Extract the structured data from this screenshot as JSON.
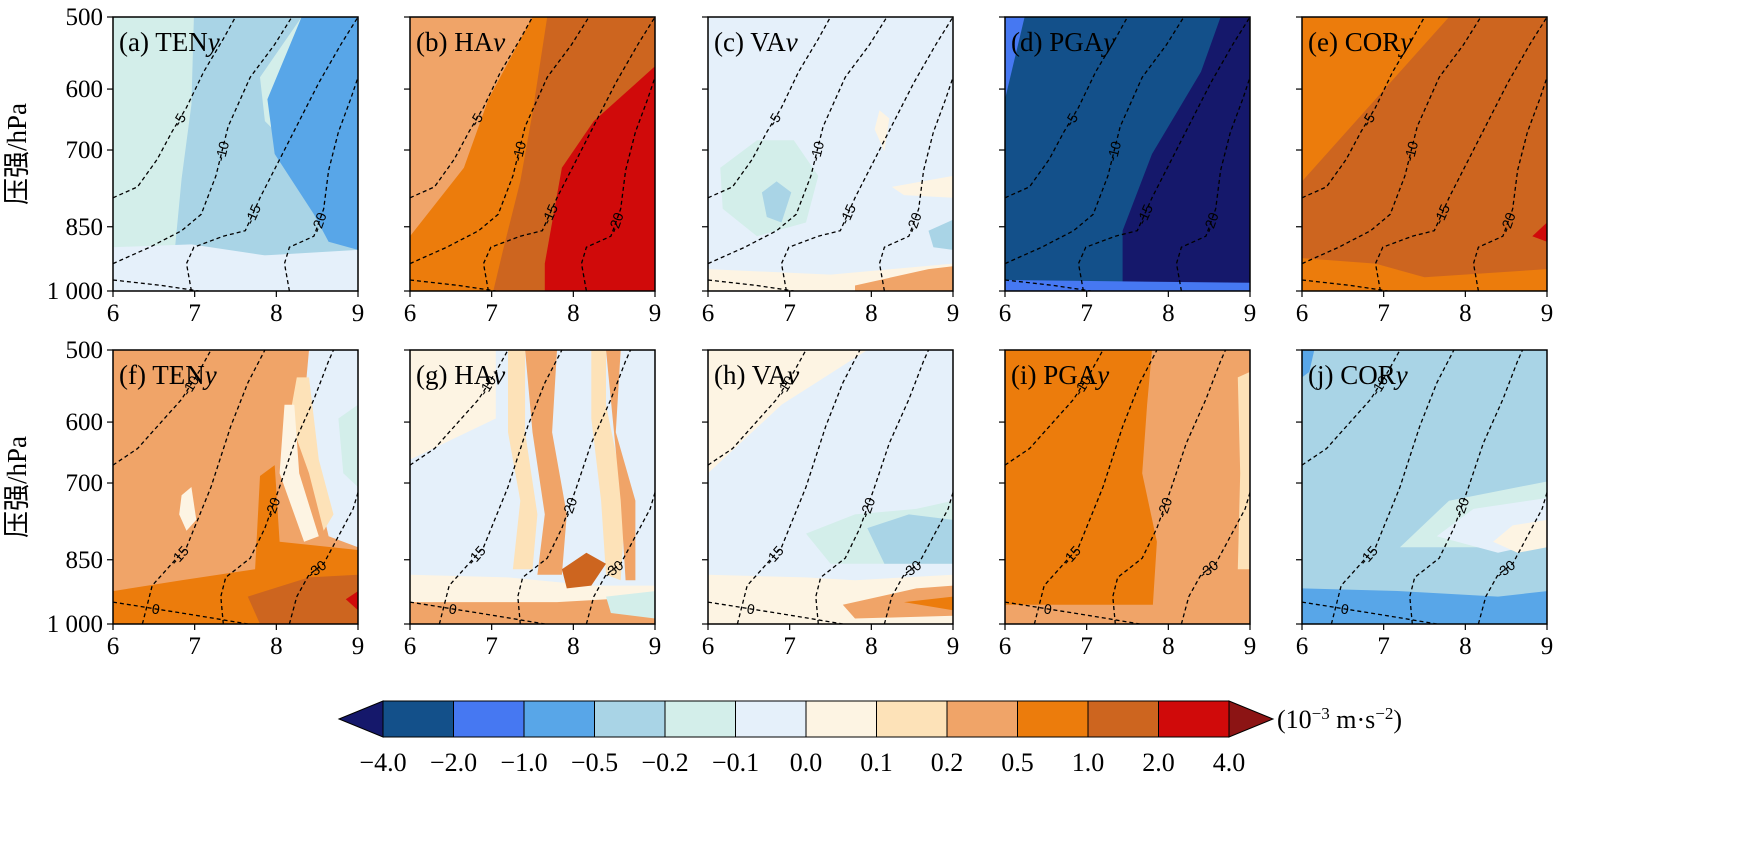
{
  "colors": {
    "levels": [
      "-4.0",
      "-2.0",
      "-1.0",
      "-0.5",
      "-0.2",
      "-0.1",
      "0.0",
      "0.1",
      "0.2",
      "0.5",
      "1.0",
      "2.0",
      "4.0"
    ],
    "under": "#15186b",
    "over": "#8c1414",
    "bins": [
      "#13508a",
      "#4678f2",
      "#58a6e8",
      "#a9d4e6",
      "#d3eeea",
      "#e5f0fa",
      "#fdf4e3",
      "#fde2b8",
      "#f0a468",
      "#ec7c0c",
      "#cd651f",
      "#d00a0a"
    ]
  },
  "colorbar": {
    "unit_parts": [
      "(10",
      "−3",
      " m·s",
      "−2",
      ")"
    ]
  },
  "chart_data": {
    "type": "heatmap",
    "ylabel": "压强/hPa",
    "x_ticks": [
      "6",
      "7",
      "8",
      "9"
    ],
    "y_ticks": [
      "500",
      "600",
      "700",
      "850",
      "1 000"
    ],
    "xlim": [
      6,
      9
    ],
    "ylim": [
      1000,
      500
    ],
    "y_scale": "log",
    "contour_style": "black dashed",
    "contour_levels": {
      "row1": [
        0,
        -5,
        -10,
        -15,
        -20
      ],
      "row2": [
        0,
        -10,
        -15,
        -20,
        -30
      ]
    },
    "panels": [
      {
        "id": "a",
        "title": "(a) TENy",
        "row": 1,
        "col": 1
      },
      {
        "id": "b",
        "title": "(b) HAv",
        "row": 1,
        "col": 2
      },
      {
        "id": "c",
        "title": "(c) VAv",
        "row": 1,
        "col": 3
      },
      {
        "id": "d",
        "title": "(d) PGAy",
        "row": 1,
        "col": 4
      },
      {
        "id": "e",
        "title": "(e) CORy",
        "row": 1,
        "col": 5
      },
      {
        "id": "f",
        "title": "(f) TENy",
        "row": 2,
        "col": 1
      },
      {
        "id": "g",
        "title": "(g) HAv",
        "row": 2,
        "col": 2
      },
      {
        "id": "h",
        "title": "(h) VAv",
        "row": 2,
        "col": 3
      },
      {
        "id": "i",
        "title": "(i) PGAy",
        "row": 2,
        "col": 4
      },
      {
        "id": "j",
        "title": "(j) CORy",
        "row": 2,
        "col": 5
      }
    ]
  }
}
